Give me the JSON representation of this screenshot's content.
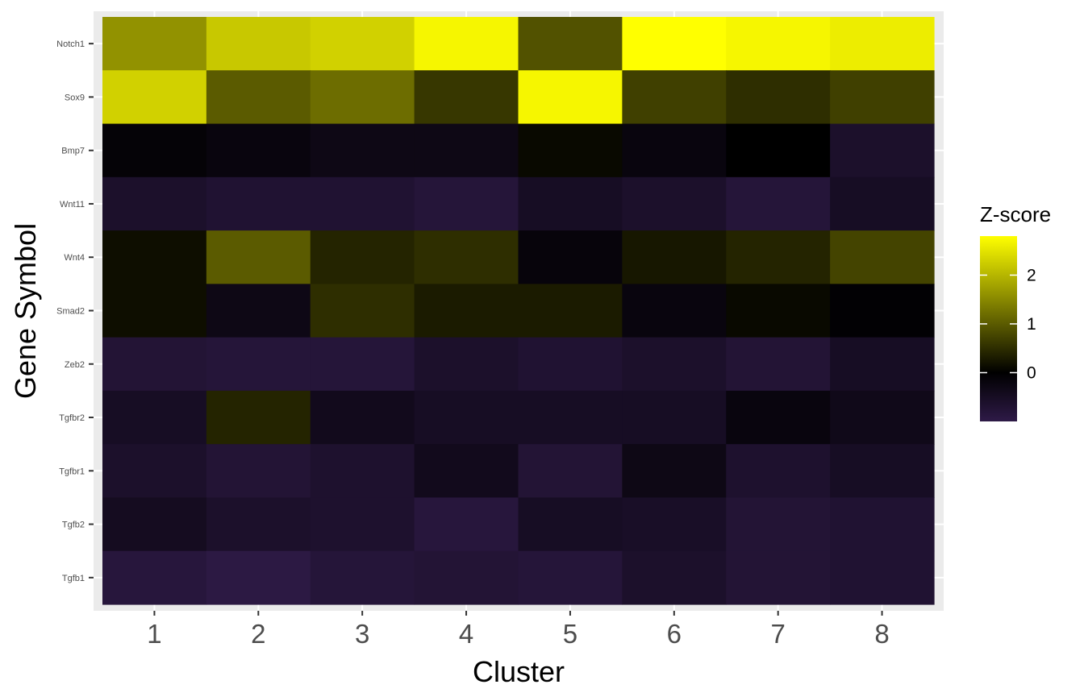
{
  "chart_data": {
    "type": "heatmap",
    "xlabel": "Cluster",
    "ylabel": "Gene Symbol",
    "x_categories": [
      "1",
      "2",
      "3",
      "4",
      "5",
      "6",
      "7",
      "8"
    ],
    "y_categories": [
      "Notch1",
      "Sox9",
      "Bmp7",
      "Wnt11",
      "Wnt4",
      "Smad2",
      "Zeb2",
      "Tgfbr2",
      "Tgfbr1",
      "Tgfb2",
      "Tgfb1"
    ],
    "values": [
      [
        1.6,
        2.2,
        2.3,
        2.7,
        0.9,
        2.8,
        2.7,
        2.6
      ],
      [
        2.3,
        1.0,
        1.2,
        0.6,
        2.7,
        0.7,
        0.5,
        0.7
      ],
      [
        -0.1,
        -0.2,
        -0.3,
        -0.3,
        0.1,
        -0.2,
        0.0,
        -0.6
      ],
      [
        -0.6,
        -0.7,
        -0.7,
        -0.8,
        -0.5,
        -0.6,
        -0.8,
        -0.5
      ],
      [
        0.15,
        1.0,
        0.4,
        0.5,
        -0.15,
        0.25,
        0.4,
        0.75
      ],
      [
        0.15,
        -0.3,
        0.5,
        0.3,
        0.3,
        -0.2,
        0.1,
        -0.05
      ],
      [
        -0.75,
        -0.8,
        -0.8,
        -0.6,
        -0.7,
        -0.6,
        -0.75,
        -0.5
      ],
      [
        -0.5,
        0.4,
        -0.4,
        -0.5,
        -0.5,
        -0.5,
        -0.2,
        -0.35
      ],
      [
        -0.6,
        -0.75,
        -0.65,
        -0.4,
        -0.75,
        -0.3,
        -0.65,
        -0.5
      ],
      [
        -0.45,
        -0.6,
        -0.65,
        -0.85,
        -0.5,
        -0.55,
        -0.75,
        -0.7
      ],
      [
        -0.85,
        -0.95,
        -0.8,
        -0.75,
        -0.8,
        -0.6,
        -0.75,
        -0.7
      ]
    ],
    "legend": {
      "title": "Z-score",
      "ticks": [
        0,
        1,
        2
      ],
      "min": -1.0,
      "max": 2.8,
      "colors": {
        "low": "#2e1a47",
        "mid": "#000000",
        "high": "#ffff00"
      },
      "placement": "right"
    },
    "grid": true,
    "panel_background": "#ebebeb"
  }
}
